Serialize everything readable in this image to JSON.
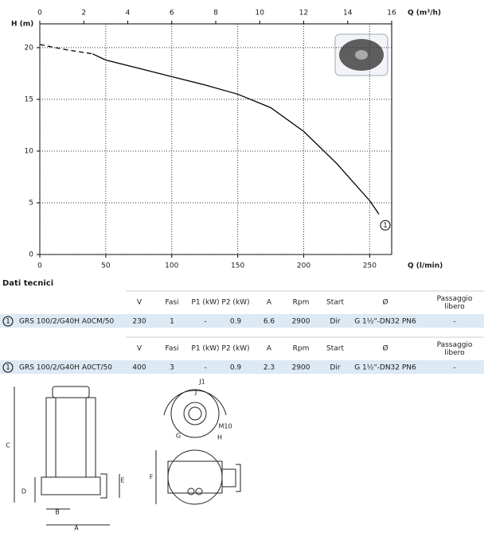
{
  "chart_data": {
    "type": "line",
    "y_label": "H (m)",
    "x_label": "Q (l/min)",
    "x2_label": "Q (m³/h)",
    "xlim": [
      0,
      266.67
    ],
    "xticks": [
      0,
      50,
      100,
      150,
      200,
      250
    ],
    "x2lim": [
      0,
      16
    ],
    "x2ticks": [
      0,
      2,
      4,
      6,
      8,
      10,
      12,
      14,
      16
    ],
    "ylim": [
      0,
      22.3
    ],
    "yticks": [
      0,
      5,
      10,
      15,
      20
    ],
    "grid": true,
    "series": [
      {
        "linestyle": "dashed",
        "color": "#000000",
        "x": [
          0,
          20,
          40
        ],
        "values": [
          20.3,
          19.8,
          19.4
        ]
      },
      {
        "linestyle": "solid",
        "color": "#000000",
        "x": [
          40,
          50,
          75,
          100,
          125,
          150,
          175,
          200,
          225,
          250,
          257
        ],
        "values": [
          19.4,
          18.8,
          18.0,
          17.2,
          16.4,
          15.5,
          14.2,
          11.9,
          8.8,
          5.2,
          3.9
        ]
      }
    ],
    "curve_label": "1"
  },
  "section_title": "Dati tecnici",
  "tables": [
    {
      "header": [
        "V",
        "Fasi",
        "P1 (kW)",
        "P2 (kW)",
        "A",
        "Rpm",
        "Start",
        "Ø",
        "Passaggio libero"
      ],
      "row": {
        "index": "1",
        "model": "GRS 100/2/G40H A0CM/50",
        "cells": [
          "230",
          "1",
          "-",
          "0.9",
          "6.6",
          "2900",
          "Dir",
          "G 1½\"-DN32 PN6",
          "-"
        ]
      }
    },
    {
      "header": [
        "V",
        "Fasi",
        "P1 (kW)",
        "P2 (kW)",
        "A",
        "Rpm",
        "Start",
        "Ø",
        "Passaggio libero"
      ],
      "row": {
        "index": "1",
        "model": "GRS 100/2/G40H A0CT/50",
        "cells": [
          "400",
          "3",
          "-",
          "0.9",
          "2.3",
          "2900",
          "Dir",
          "G 1½\"-DN32 PN6",
          "-"
        ]
      }
    }
  ],
  "drawing_labels": {
    "C": "C",
    "D": "D",
    "B": "B",
    "A": "A",
    "E": "E",
    "F": "F",
    "J1": "J1",
    "J": "J",
    "M10": "M10",
    "G": "G",
    "H": "H"
  }
}
